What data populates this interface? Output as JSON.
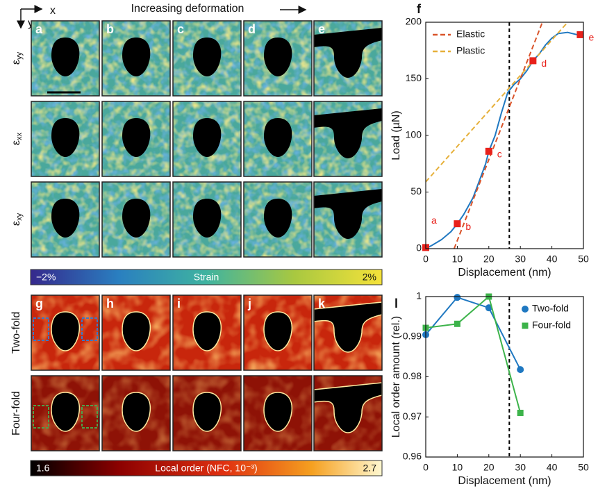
{
  "figure": {
    "title": "Increasing deformation",
    "axis_x": "x",
    "axis_y": "y",
    "panels": [
      "a",
      "b",
      "c",
      "d",
      "e",
      "g",
      "h",
      "i",
      "j",
      "k"
    ],
    "strain_rows": [
      {
        "main": "ε",
        "sub": "yy"
      },
      {
        "main": "ε",
        "sub": "xx"
      },
      {
        "main": "ε",
        "sub": "xy"
      }
    ],
    "strain_colorbar": {
      "min": "−2%",
      "label": "Strain",
      "max": "2%"
    },
    "order_rows": [
      "Two-fold",
      "Four-fold"
    ],
    "order_colorbar": {
      "min": "1.6",
      "label": "Local order (NFC, 10⁻³)",
      "max": "2.7"
    }
  },
  "chart_data": [
    {
      "type": "line",
      "panel": "f",
      "xlabel": "Displacement (nm)",
      "ylabel": "Load (µN)",
      "xlim": [
        0,
        50
      ],
      "ylim": [
        0,
        200
      ],
      "xticks": [
        0,
        10,
        20,
        30,
        40,
        50
      ],
      "yticks": [
        0,
        50,
        100,
        150,
        200
      ],
      "vline": 26.5,
      "legend": "upper left",
      "series": [
        {
          "color": "#1f78c1",
          "x": [
            0,
            2,
            5,
            8,
            10,
            12,
            15,
            17,
            19,
            20,
            22,
            24,
            26,
            28,
            30,
            32,
            34,
            36,
            38,
            40,
            42,
            45,
            48,
            50
          ],
          "values": [
            0,
            3,
            8,
            15,
            22,
            30,
            45,
            60,
            75,
            86,
            100,
            120,
            138,
            145,
            150,
            157,
            166,
            172,
            180,
            186,
            190,
            191,
            189,
            188
          ]
        },
        {
          "name": "Elastic",
          "color": "#d9542a",
          "dash": true,
          "x": [
            9,
            37
          ],
          "values": [
            0,
            200
          ]
        },
        {
          "name": "Plastic",
          "color": "#e6b03a",
          "dash": true,
          "x": [
            0,
            45
          ],
          "values": [
            59,
            200
          ]
        }
      ],
      "points": {
        "labels": [
          "a",
          "b",
          "c",
          "d",
          "e"
        ],
        "x": [
          0,
          10,
          20,
          34,
          49
        ],
        "values": [
          1,
          22,
          86,
          166,
          189
        ],
        "color": "#e8211b"
      }
    },
    {
      "type": "line",
      "panel": "l",
      "xlabel": "Displacement (nm)",
      "ylabel": "Local order amount (rel.)",
      "xlim": [
        0,
        50
      ],
      "ylim": [
        0.96,
        1
      ],
      "xticks": [
        0,
        10,
        20,
        30,
        40,
        50
      ],
      "yticks": [
        0.96,
        0.97,
        0.98,
        0.99,
        1
      ],
      "vline": 26.5,
      "legend": "upper right",
      "series": [
        {
          "name": "Two-fold",
          "color": "#1f78c1",
          "marker": "circle",
          "x": [
            0,
            10,
            20,
            30
          ],
          "values": [
            0.9905,
            0.9998,
            0.9972,
            0.9818
          ]
        },
        {
          "name": "Four-fold",
          "color": "#3cb34a",
          "marker": "square",
          "x": [
            0,
            10,
            20,
            30
          ],
          "values": [
            0.9922,
            0.9932,
            1,
            0.971
          ]
        }
      ]
    }
  ]
}
